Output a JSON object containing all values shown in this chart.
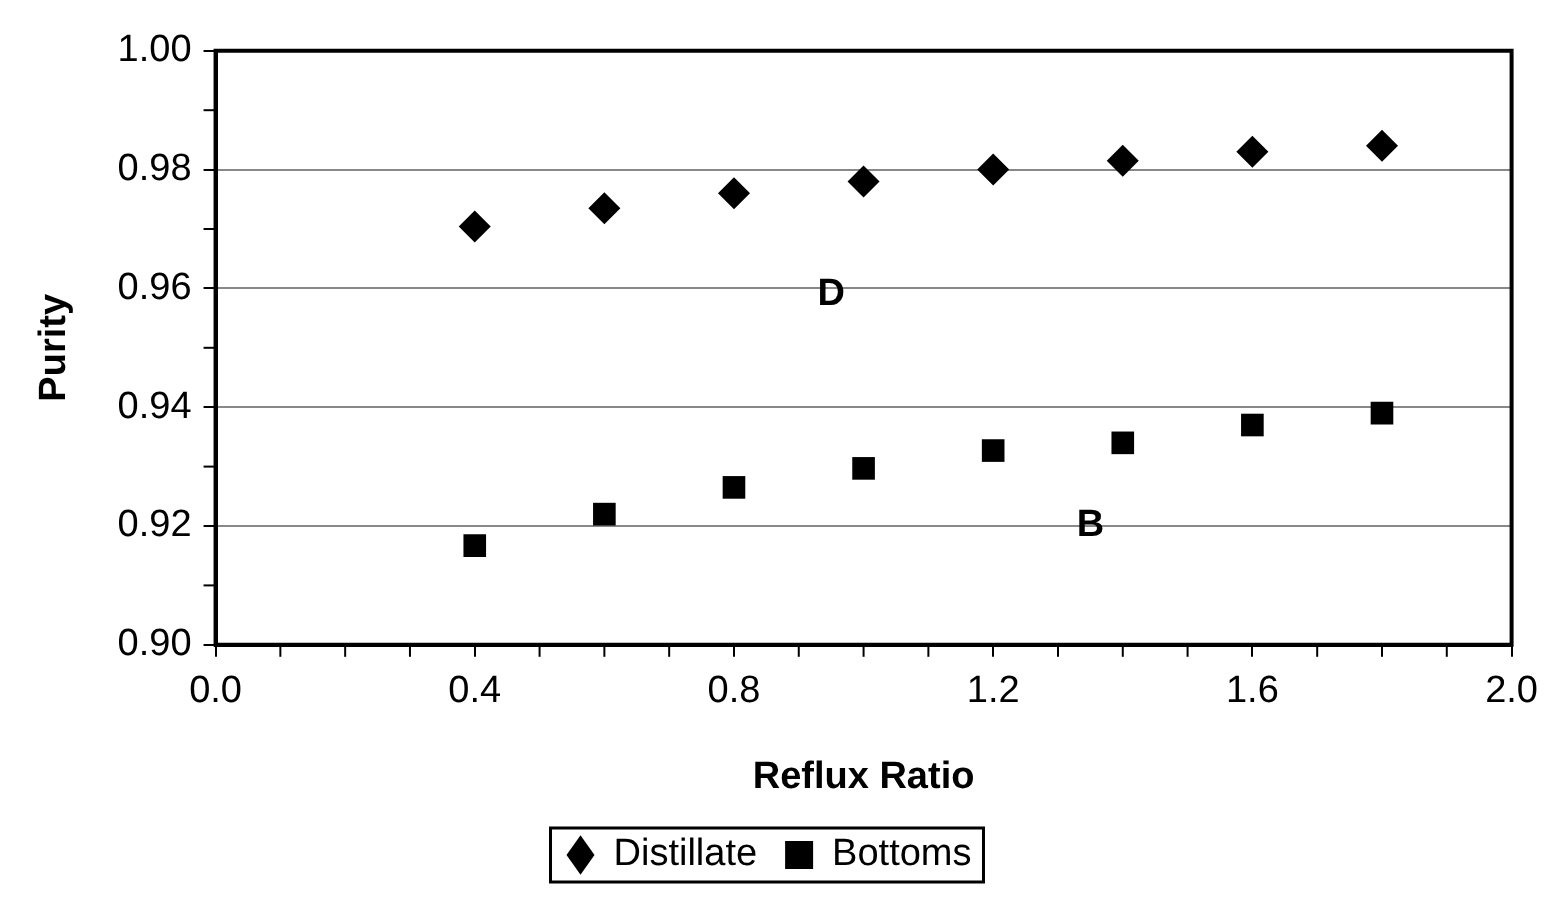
{
  "chart_data": {
    "type": "scatter",
    "xlabel": "Reflux Ratio",
    "ylabel": "Purity",
    "x": [
      0.4,
      0.6,
      0.8,
      1.0,
      1.2,
      1.4,
      1.6,
      1.8
    ],
    "series": [
      {
        "name": "Distillate",
        "color": "#000000",
        "marker": "diamond",
        "values": [
          0.9704,
          0.9735,
          0.976,
          0.978,
          0.98,
          0.9815,
          0.983,
          0.984
        ]
      },
      {
        "name": "Bottoms",
        "color": "#000000",
        "marker": "square",
        "values": [
          0.9167,
          0.922,
          0.9265,
          0.9297,
          0.9327,
          0.934,
          0.937,
          0.939
        ]
      }
    ],
    "xlim": [
      0.0,
      2.0
    ],
    "xticks": [
      {
        "value": 0,
        "label": "0.0"
      },
      0.4,
      0.8,
      1.2,
      1.6,
      {
        "value": 2,
        "label": "2.0"
      }
    ],
    "ylim": [
      0.9,
      1.0
    ],
    "yticks": [
      {
        "value": 0.9,
        "label": "0.90"
      },
      {
        "value": 0.92,
        "label": "0.92"
      },
      {
        "value": 0.94,
        "label": "0.94"
      },
      {
        "value": 0.96,
        "label": "0.96"
      },
      {
        "value": 0.98,
        "label": "0.98"
      },
      {
        "value": 1.0,
        "label": "1.00"
      }
    ],
    "grid": "y",
    "legend": "bottom",
    "annotations": [
      "D",
      "B"
    ]
  }
}
